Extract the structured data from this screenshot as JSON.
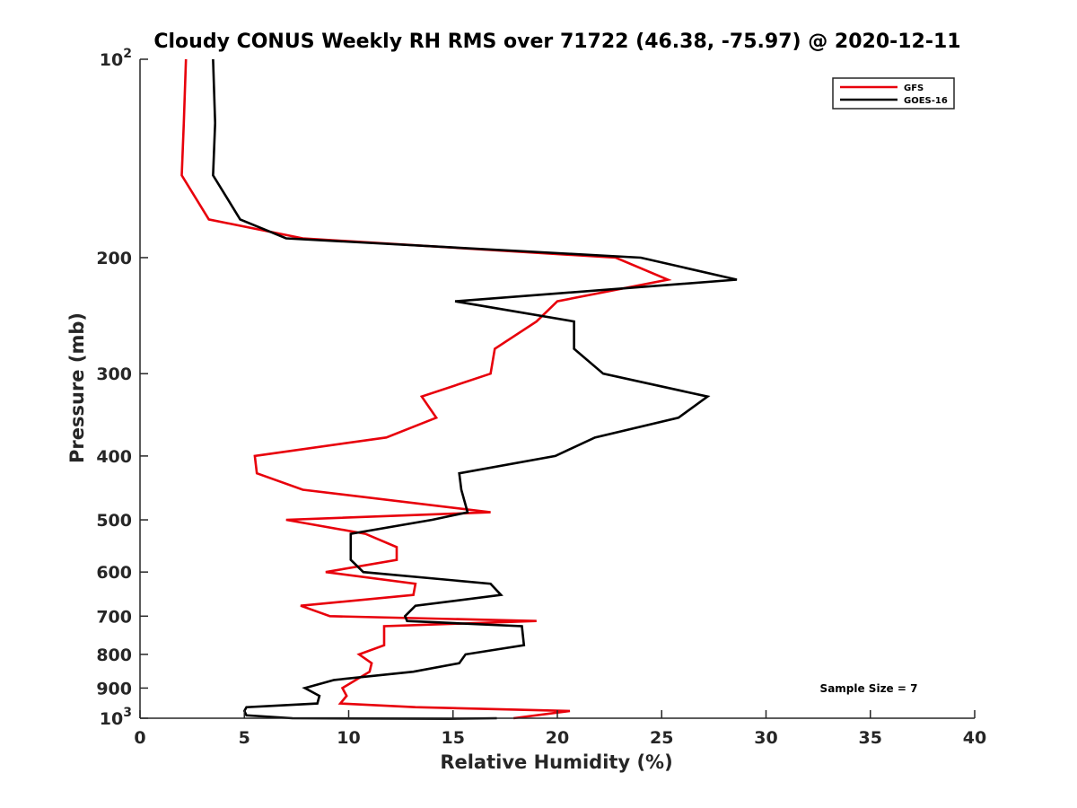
{
  "chart_data": {
    "type": "line",
    "title": "Cloudy CONUS Weekly RH RMS over 71722 (46.38, -75.97) @ 2020-12-11",
    "xlabel": "Relative Humidity (%)",
    "ylabel": "Pressure (mb)",
    "xlim": [
      0,
      40
    ],
    "ylim": [
      100,
      1000
    ],
    "yscale": "log",
    "y_reversed": true,
    "grid": false,
    "legend_position": "top-right",
    "x_ticks": [
      0,
      5,
      10,
      15,
      20,
      25,
      30,
      35,
      40
    ],
    "x_tick_labels": [
      "0",
      "5",
      "10",
      "15",
      "20",
      "25",
      "30",
      "35",
      "40"
    ],
    "y_ticks": [
      100,
      200,
      300,
      400,
      500,
      600,
      700,
      800,
      900,
      1000
    ],
    "y_tick_labels": [
      {
        "base": "10",
        "exp": "2"
      },
      {
        "base": "200",
        "exp": ""
      },
      {
        "base": "300",
        "exp": ""
      },
      {
        "base": "400",
        "exp": ""
      },
      {
        "base": "500",
        "exp": ""
      },
      {
        "base": "600",
        "exp": ""
      },
      {
        "base": "700",
        "exp": ""
      },
      {
        "base": "800",
        "exp": ""
      },
      {
        "base": "900",
        "exp": ""
      },
      {
        "base": "10",
        "exp": "3"
      }
    ],
    "annotation": "Sample Size = 7",
    "series": [
      {
        "name": "GFS",
        "color": "#e8000b",
        "points": [
          [
            2.2,
            100
          ],
          [
            2.1,
            125
          ],
          [
            2.0,
            150
          ],
          [
            3.3,
            175
          ],
          [
            7.8,
            187
          ],
          [
            22.8,
            200
          ],
          [
            25.3,
            216
          ],
          [
            20.0,
            233
          ],
          [
            19.0,
            250
          ],
          [
            17.0,
            275
          ],
          [
            16.8,
            300
          ],
          [
            13.5,
            325
          ],
          [
            14.2,
            350
          ],
          [
            11.8,
            375
          ],
          [
            5.5,
            400
          ],
          [
            5.6,
            425
          ],
          [
            7.8,
            450
          ],
          [
            16.8,
            487
          ],
          [
            7.0,
            500
          ],
          [
            10.8,
            525
          ],
          [
            12.3,
            550
          ],
          [
            12.3,
            575
          ],
          [
            8.9,
            600
          ],
          [
            13.2,
            625
          ],
          [
            13.1,
            650
          ],
          [
            7.7,
            675
          ],
          [
            9.1,
            700
          ],
          [
            19.0,
            712
          ],
          [
            11.7,
            725
          ],
          [
            11.7,
            775
          ],
          [
            10.5,
            800
          ],
          [
            11.1,
            825
          ],
          [
            11.0,
            850
          ],
          [
            9.7,
            900
          ],
          [
            9.9,
            925
          ],
          [
            9.6,
            950
          ],
          [
            13.2,
            962
          ],
          [
            20.6,
            975
          ],
          [
            17.9,
            1000
          ]
        ]
      },
      {
        "name": "GOES-16",
        "color": "#000000",
        "points": [
          [
            3.5,
            100
          ],
          [
            3.6,
            125
          ],
          [
            3.5,
            150
          ],
          [
            4.8,
            175
          ],
          [
            7.0,
            187
          ],
          [
            24.0,
            200
          ],
          [
            28.6,
            216
          ],
          [
            15.1,
            233
          ],
          [
            20.8,
            250
          ],
          [
            20.8,
            275
          ],
          [
            22.2,
            300
          ],
          [
            27.2,
            325
          ],
          [
            25.8,
            350
          ],
          [
            21.8,
            375
          ],
          [
            19.9,
            400
          ],
          [
            15.3,
            425
          ],
          [
            15.4,
            450
          ],
          [
            15.7,
            487
          ],
          [
            14.0,
            500
          ],
          [
            10.1,
            525
          ],
          [
            10.1,
            550
          ],
          [
            10.1,
            575
          ],
          [
            10.7,
            600
          ],
          [
            16.8,
            625
          ],
          [
            17.3,
            650
          ],
          [
            13.2,
            675
          ],
          [
            12.7,
            700
          ],
          [
            12.8,
            712
          ],
          [
            18.3,
            725
          ],
          [
            18.4,
            775
          ],
          [
            15.6,
            800
          ],
          [
            15.3,
            825
          ],
          [
            13.1,
            850
          ],
          [
            9.3,
            875
          ],
          [
            7.9,
            900
          ],
          [
            8.6,
            925
          ],
          [
            8.5,
            950
          ],
          [
            5.1,
            962
          ],
          [
            5.0,
            975
          ],
          [
            5.1,
            990
          ],
          [
            7.3,
            1000
          ],
          [
            14.8,
            1002
          ],
          [
            17.1,
            1000
          ]
        ]
      }
    ]
  }
}
